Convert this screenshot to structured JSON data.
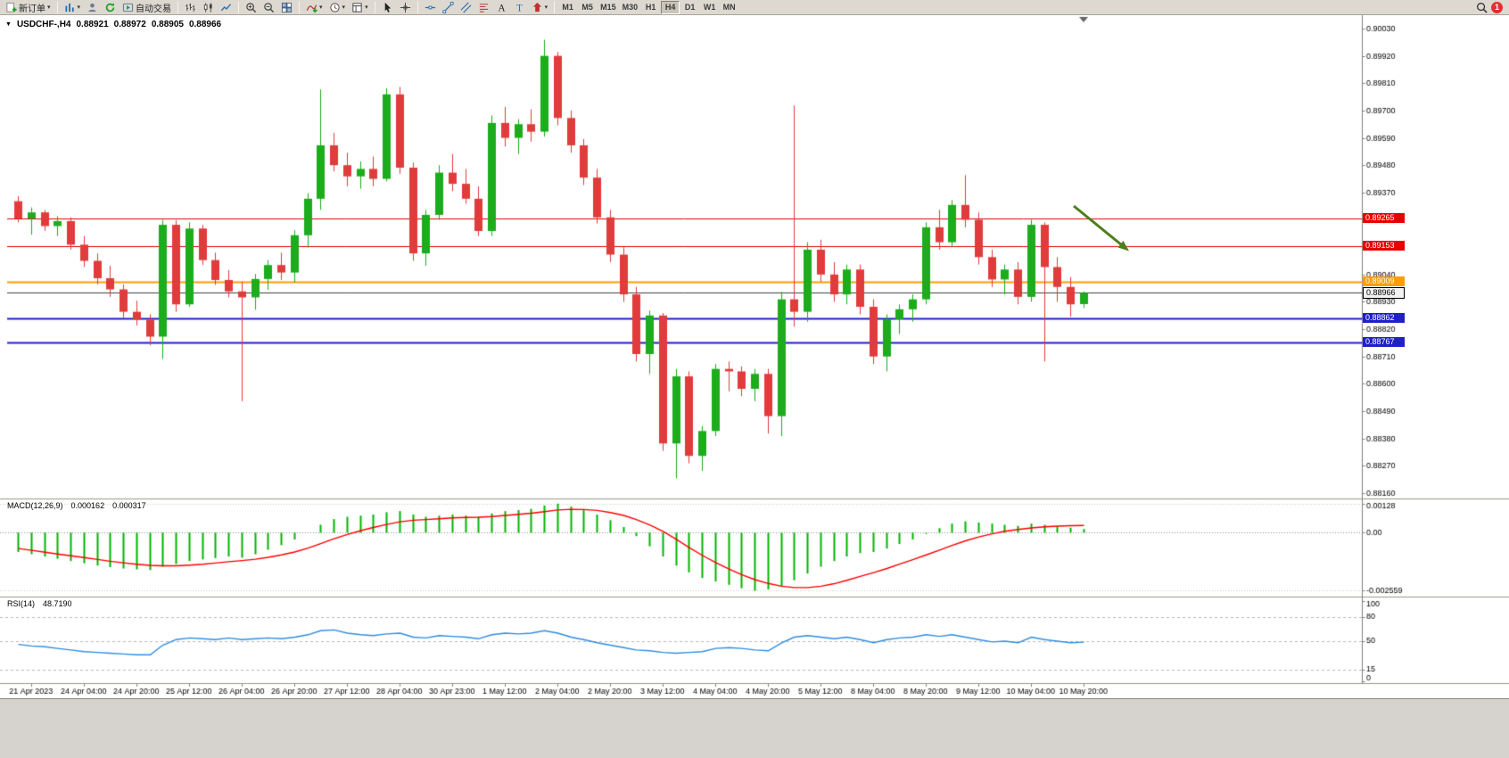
{
  "toolbar": {
    "new_order_label": "新订单",
    "auto_trading_label": "自动交易",
    "timeframes": [
      "M1",
      "M5",
      "M15",
      "M30",
      "H1",
      "H4",
      "D1",
      "W1",
      "MN"
    ],
    "active_timeframe": "H4",
    "notification_badge": "1"
  },
  "chart_header": {
    "symbol": "USDCHF-,H4",
    "open": "0.88921",
    "high": "0.88972",
    "low": "0.88905",
    "close": "0.88966"
  },
  "indicators": {
    "macd": {
      "name": "MACD(12,26,9)",
      "value_main": "0.000162",
      "value_signal": "0.000317"
    },
    "rsi": {
      "name": "RSI(14)",
      "value": "48.7190"
    }
  },
  "chart_data": [
    {
      "type": "candlestick",
      "title": "USDCHF- H4",
      "ylim": [
        0.8816,
        0.9003
      ],
      "up_color": "#1cac1c",
      "down_color": "#e03c3c",
      "price_axis_ticks": [
        "0.90030",
        "0.89920",
        "0.89810",
        "0.89700",
        "0.89590",
        "0.89480",
        "0.89370",
        "0.89260",
        "0.89150",
        "0.89040",
        "0.88930",
        "0.88820",
        "0.88710",
        "0.88600",
        "0.88490",
        "0.88380",
        "0.88270",
        "0.88160"
      ],
      "hlines": [
        {
          "price": 0.89265,
          "label": "0.89265",
          "color": "#e60000",
          "width": 1
        },
        {
          "price": 0.89153,
          "label": "0.89153",
          "color": "#e60000",
          "width": 1
        },
        {
          "price": 0.89009,
          "label": "0.89009",
          "color": "#ff9c00",
          "width": 2
        },
        {
          "price": 0.88966,
          "label": "0.88966",
          "color": "#404040",
          "width": 1,
          "is_current": true
        },
        {
          "price": 0.88862,
          "label": "0.88862",
          "color": "#2020c8",
          "width": 2
        },
        {
          "price": 0.88767,
          "label": "0.88767",
          "color": "#2020c8",
          "width": 2
        }
      ],
      "annotations": [
        {
          "type": "arrow",
          "direction": "down-right",
          "color": "#4f7d1c"
        }
      ],
      "time_axis": [
        {
          "index": 1,
          "label": "21 Apr 2023"
        },
        {
          "index": 5,
          "label": "24 Apr 04:00"
        },
        {
          "index": 9,
          "label": "24 Apr 20:00"
        },
        {
          "index": 13,
          "label": "25 Apr 12:00"
        },
        {
          "index": 17,
          "label": "26 Apr 04:00"
        },
        {
          "index": 21,
          "label": "26 Apr 20:00"
        },
        {
          "index": 25,
          "label": "27 Apr 12:00"
        },
        {
          "index": 29,
          "label": "28 Apr 04:00"
        },
        {
          "index": 33,
          "label": "30 Apr 23:00"
        },
        {
          "index": 37,
          "label": "1 May 12:00"
        },
        {
          "index": 41,
          "label": "2 May 04:00"
        },
        {
          "index": 45,
          "label": "2 May 20:00"
        },
        {
          "index": 49,
          "label": "3 May 12:00"
        },
        {
          "index": 53,
          "label": "4 May 04:00"
        },
        {
          "index": 57,
          "label": "4 May 20:00"
        },
        {
          "index": 61,
          "label": "5 May 12:00"
        },
        {
          "index": 65,
          "label": "8 May 04:00"
        },
        {
          "index": 69,
          "label": "8 May 20:00"
        },
        {
          "index": 73,
          "label": "9 May 12:00"
        },
        {
          "index": 77,
          "label": "10 May 04:00"
        },
        {
          "index": 81,
          "label": "10 May 20:00"
        }
      ],
      "ohlc": [
        [
          0.89335,
          0.89355,
          0.8925,
          0.89265
        ],
        [
          0.89265,
          0.8931,
          0.892,
          0.8929
        ],
        [
          0.8929,
          0.893,
          0.89215,
          0.89235
        ],
        [
          0.89235,
          0.89275,
          0.89195,
          0.89255
        ],
        [
          0.89255,
          0.8927,
          0.8914,
          0.8916
        ],
        [
          0.8916,
          0.89195,
          0.8907,
          0.89095
        ],
        [
          0.89095,
          0.89125,
          0.89,
          0.89025
        ],
        [
          0.89025,
          0.89075,
          0.8895,
          0.8898
        ],
        [
          0.8898,
          0.89,
          0.88865,
          0.8889
        ],
        [
          0.8889,
          0.88935,
          0.88835,
          0.88858
        ],
        [
          0.88858,
          0.8888,
          0.88755,
          0.8879
        ],
        [
          0.8879,
          0.8926,
          0.887,
          0.8924
        ],
        [
          0.8924,
          0.89258,
          0.8889,
          0.8892
        ],
        [
          0.8892,
          0.8925,
          0.8891,
          0.89225
        ],
        [
          0.89225,
          0.8924,
          0.89078,
          0.89098
        ],
        [
          0.89098,
          0.89128,
          0.88998,
          0.89018
        ],
        [
          0.89018,
          0.89058,
          0.88948,
          0.88972
        ],
        [
          0.88972,
          0.89012,
          0.8853,
          0.88948
        ],
        [
          0.88948,
          0.89042,
          0.88898,
          0.89022
        ],
        [
          0.89022,
          0.89098,
          0.88978,
          0.89078
        ],
        [
          0.89078,
          0.89128,
          0.89018,
          0.89048
        ],
        [
          0.89048,
          0.89218,
          0.89008,
          0.89198
        ],
        [
          0.89198,
          0.89368,
          0.89148,
          0.89345
        ],
        [
          0.89345,
          0.89785,
          0.893,
          0.8956
        ],
        [
          0.8956,
          0.8961,
          0.89455,
          0.8948
        ],
        [
          0.8948,
          0.8953,
          0.89395,
          0.89435
        ],
        [
          0.89435,
          0.89495,
          0.89385,
          0.89465
        ],
        [
          0.89465,
          0.89515,
          0.89395,
          0.89425
        ],
        [
          0.89425,
          0.8979,
          0.89415,
          0.89765
        ],
        [
          0.89765,
          0.89795,
          0.89445,
          0.8947
        ],
        [
          0.8947,
          0.8949,
          0.89095,
          0.89125
        ],
        [
          0.89125,
          0.893,
          0.89075,
          0.8928
        ],
        [
          0.8928,
          0.8948,
          0.8926,
          0.8945
        ],
        [
          0.8945,
          0.89525,
          0.89375,
          0.89405
        ],
        [
          0.89405,
          0.89465,
          0.89325,
          0.89345
        ],
        [
          0.89345,
          0.89395,
          0.89195,
          0.89215
        ],
        [
          0.89215,
          0.8968,
          0.89195,
          0.8965
        ],
        [
          0.8965,
          0.89715,
          0.89555,
          0.8959
        ],
        [
          0.8959,
          0.89665,
          0.89525,
          0.89645
        ],
        [
          0.89645,
          0.89705,
          0.89575,
          0.89615
        ],
        [
          0.89615,
          0.89985,
          0.89595,
          0.8992
        ],
        [
          0.8992,
          0.89935,
          0.8964,
          0.8967
        ],
        [
          0.8967,
          0.897,
          0.8953,
          0.8956
        ],
        [
          0.8956,
          0.89585,
          0.894,
          0.8943
        ],
        [
          0.8943,
          0.89465,
          0.89245,
          0.8927
        ],
        [
          0.8927,
          0.893,
          0.8909,
          0.8912
        ],
        [
          0.8912,
          0.8915,
          0.8893,
          0.8896
        ],
        [
          0.8896,
          0.8899,
          0.8869,
          0.8872
        ],
        [
          0.8872,
          0.88895,
          0.8864,
          0.88875
        ],
        [
          0.88875,
          0.88885,
          0.8833,
          0.8836
        ],
        [
          0.8836,
          0.8866,
          0.8822,
          0.8863
        ],
        [
          0.8863,
          0.8865,
          0.8828,
          0.8831
        ],
        [
          0.8831,
          0.8843,
          0.8825,
          0.8841
        ],
        [
          0.8841,
          0.8868,
          0.8839,
          0.8866
        ],
        [
          0.8866,
          0.8869,
          0.8857,
          0.8865
        ],
        [
          0.8865,
          0.8867,
          0.8855,
          0.8858
        ],
        [
          0.8858,
          0.8866,
          0.8853,
          0.8864
        ],
        [
          0.8864,
          0.8866,
          0.884,
          0.8847
        ],
        [
          0.8847,
          0.8897,
          0.8839,
          0.8894
        ],
        [
          0.8894,
          0.8972,
          0.8883,
          0.8889
        ],
        [
          0.8889,
          0.8917,
          0.8885,
          0.8914
        ],
        [
          0.8914,
          0.8918,
          0.8901,
          0.8904
        ],
        [
          0.8904,
          0.8909,
          0.8893,
          0.8896
        ],
        [
          0.8896,
          0.8908,
          0.8892,
          0.8906
        ],
        [
          0.8906,
          0.8908,
          0.8888,
          0.8891
        ],
        [
          0.8891,
          0.8894,
          0.8868,
          0.8871
        ],
        [
          0.8871,
          0.8888,
          0.8865,
          0.8886
        ],
        [
          0.8886,
          0.8892,
          0.888,
          0.889
        ],
        [
          0.889,
          0.8896,
          0.8885,
          0.8894
        ],
        [
          0.8894,
          0.8925,
          0.8892,
          0.8923
        ],
        [
          0.8923,
          0.893,
          0.8914,
          0.8917
        ],
        [
          0.8917,
          0.8934,
          0.8915,
          0.8932
        ],
        [
          0.8932,
          0.8944,
          0.8923,
          0.8926
        ],
        [
          0.8926,
          0.8929,
          0.8908,
          0.8911
        ],
        [
          0.8911,
          0.8914,
          0.8899,
          0.8902
        ],
        [
          0.8902,
          0.8908,
          0.8896,
          0.8906
        ],
        [
          0.8906,
          0.8909,
          0.8892,
          0.8895
        ],
        [
          0.8895,
          0.8926,
          0.8893,
          0.8924
        ],
        [
          0.8924,
          0.8925,
          0.8869,
          0.8907
        ],
        [
          0.8907,
          0.8911,
          0.8893,
          0.8899
        ],
        [
          0.8899,
          0.8903,
          0.8887,
          0.8892
        ],
        [
          0.88921,
          0.88972,
          0.88905,
          0.88966
        ]
      ]
    },
    {
      "type": "bar",
      "name": "MACD(12,26,9)",
      "ylim": [
        -0.0027,
        0.00135
      ],
      "bar_color": "#00b400",
      "signal_color": "#ff0000",
      "axis_labels": [
        "0.00128",
        "0.00",
        "-0.002559"
      ],
      "values": [
        -0.00085,
        -0.00095,
        -0.00105,
        -0.00115,
        -0.00125,
        -0.00135,
        -0.00145,
        -0.00152,
        -0.00158,
        -0.00162,
        -0.00165,
        -0.0015,
        -0.00138,
        -0.00125,
        -0.00118,
        -0.00112,
        -0.00105,
        -0.0011,
        -0.00095,
        -0.00075,
        -0.00055,
        -0.0003,
        0.0,
        0.00035,
        0.0006,
        0.0007,
        0.00075,
        0.0008,
        0.0009,
        0.00095,
        0.0008,
        0.0007,
        0.00075,
        0.0008,
        0.00075,
        0.0007,
        0.00085,
        0.00095,
        0.001,
        0.00105,
        0.0012,
        0.00128,
        0.00115,
        0.001,
        0.0008,
        0.00055,
        0.00025,
        -0.00015,
        -0.0006,
        -0.00105,
        -0.00145,
        -0.00175,
        -0.002,
        -0.00215,
        -0.0023,
        -0.00245,
        -0.00256,
        -0.0025,
        -0.00235,
        -0.0021,
        -0.0018,
        -0.0015,
        -0.00125,
        -0.00105,
        -0.0009,
        -0.00085,
        -0.0007,
        -0.0005,
        -0.0003,
        -5e-05,
        0.0002,
        0.0004,
        0.0005,
        0.00045,
        0.0004,
        0.00035,
        0.0003,
        0.0004,
        0.00035,
        0.00028,
        0.00022,
        0.000162
      ],
      "signal": [
        -0.0007,
        -0.00078,
        -0.00086,
        -0.00094,
        -0.00102,
        -0.0011,
        -0.00118,
        -0.00126,
        -0.00133,
        -0.00139,
        -0.00144,
        -0.00146,
        -0.00146,
        -0.00143,
        -0.00139,
        -0.00134,
        -0.00128,
        -0.00123,
        -0.00117,
        -0.00109,
        -0.00098,
        -0.00085,
        -0.00068,
        -0.00048,
        -0.00027,
        -8e-05,
        9e-05,
        0.00023,
        0.00036,
        0.00048,
        0.00055,
        0.00058,
        0.00061,
        0.00065,
        0.00067,
        0.00068,
        0.00071,
        0.00076,
        0.00081,
        0.00086,
        0.00093,
        0.001,
        0.00103,
        0.00102,
        0.00098,
        0.00089,
        0.00076,
        0.00058,
        0.00034,
        6e-05,
        -0.0003,
        -0.00065,
        -0.001,
        -0.00132,
        -0.0016,
        -0.00185,
        -0.00207,
        -0.00224,
        -0.00236,
        -0.00242,
        -0.00242,
        -0.00236,
        -0.00225,
        -0.0021,
        -0.00193,
        -0.00176,
        -0.00158,
        -0.00139,
        -0.00119,
        -0.00098,
        -0.00077,
        -0.00056,
        -0.00036,
        -0.00019,
        -5e-05,
        6e-05,
        0.00014,
        0.00021,
        0.00026,
        0.00029,
        0.00031,
        0.000317
      ]
    },
    {
      "type": "line",
      "name": "RSI(14)",
      "ylim": [
        0,
        100
      ],
      "line_color": "#2e8de0",
      "levels": [
        80,
        50,
        15
      ],
      "axis_labels": [
        "100",
        "80",
        "50",
        "15",
        "0"
      ],
      "values": [
        46,
        44,
        43,
        41,
        39,
        37,
        36,
        35,
        34,
        33,
        33,
        45,
        52,
        54,
        53,
        52,
        54,
        52,
        53,
        54,
        53,
        55,
        58,
        63,
        64,
        60,
        58,
        57,
        59,
        60,
        55,
        54,
        57,
        56,
        55,
        53,
        58,
        60,
        59,
        60,
        63,
        60,
        55,
        52,
        48,
        45,
        42,
        39,
        38,
        36,
        35,
        36,
        37,
        41,
        42,
        41,
        39,
        38,
        48,
        55,
        57,
        55,
        53,
        55,
        52,
        48,
        52,
        54,
        55,
        58,
        56,
        58,
        55,
        52,
        49,
        50,
        48,
        55,
        52,
        50,
        48,
        48.7
      ]
    }
  ]
}
